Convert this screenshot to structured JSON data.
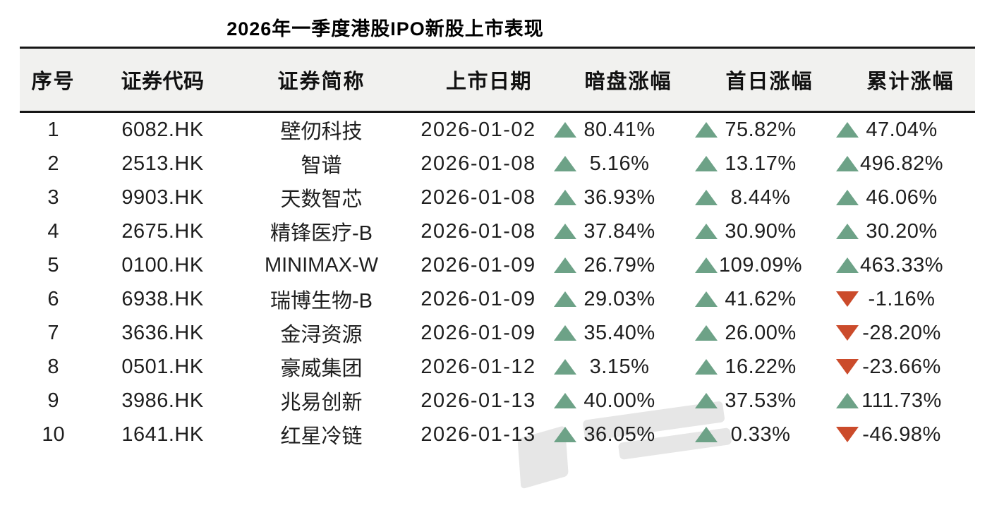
{
  "title": "2026年一季度港股IPO新股上市表现",
  "table": {
    "columns": [
      "序号",
      "证券代码",
      "证券简称",
      "上市日期",
      "暗盘涨幅",
      "首日涨幅",
      "累计涨幅"
    ],
    "rows": [
      {
        "no": "1",
        "code": "6082.HK",
        "name": "壁仞科技",
        "date": "2026-01-02",
        "changes": [
          {
            "value": "80.41%",
            "dir": "up"
          },
          {
            "value": "75.82%",
            "dir": "up"
          },
          {
            "value": "47.04%",
            "dir": "up"
          }
        ]
      },
      {
        "no": "2",
        "code": "2513.HK",
        "name": "智谱",
        "date": "2026-01-08",
        "changes": [
          {
            "value": "5.16%",
            "dir": "up"
          },
          {
            "value": "13.17%",
            "dir": "up"
          },
          {
            "value": "496.82%",
            "dir": "up"
          }
        ]
      },
      {
        "no": "3",
        "code": "9903.HK",
        "name": "天数智芯",
        "date": "2026-01-08",
        "changes": [
          {
            "value": "36.93%",
            "dir": "up"
          },
          {
            "value": "8.44%",
            "dir": "up"
          },
          {
            "value": "46.06%",
            "dir": "up"
          }
        ]
      },
      {
        "no": "4",
        "code": "2675.HK",
        "name": "精锋医疗-B",
        "date": "2026-01-08",
        "changes": [
          {
            "value": "37.84%",
            "dir": "up"
          },
          {
            "value": "30.90%",
            "dir": "up"
          },
          {
            "value": "30.20%",
            "dir": "up"
          }
        ]
      },
      {
        "no": "5",
        "code": "0100.HK",
        "name": "MINIMAX-W",
        "date": "2026-01-09",
        "changes": [
          {
            "value": "26.79%",
            "dir": "up"
          },
          {
            "value": "109.09%",
            "dir": "up"
          },
          {
            "value": "463.33%",
            "dir": "up"
          }
        ]
      },
      {
        "no": "6",
        "code": "6938.HK",
        "name": "瑞博生物-B",
        "date": "2026-01-09",
        "changes": [
          {
            "value": "29.03%",
            "dir": "up"
          },
          {
            "value": "41.62%",
            "dir": "up"
          },
          {
            "value": "-1.16%",
            "dir": "down"
          }
        ]
      },
      {
        "no": "7",
        "code": "3636.HK",
        "name": "金浔资源",
        "date": "2026-01-09",
        "changes": [
          {
            "value": "35.40%",
            "dir": "up"
          },
          {
            "value": "26.00%",
            "dir": "up"
          },
          {
            "value": "-28.20%",
            "dir": "down"
          }
        ]
      },
      {
        "no": "8",
        "code": "0501.HK",
        "name": "豪威集团",
        "date": "2026-01-12",
        "changes": [
          {
            "value": "3.15%",
            "dir": "up"
          },
          {
            "value": "16.22%",
            "dir": "up"
          },
          {
            "value": "-23.66%",
            "dir": "down"
          }
        ]
      },
      {
        "no": "9",
        "code": "3986.HK",
        "name": "兆易创新",
        "date": "2026-01-13",
        "changes": [
          {
            "value": "40.00%",
            "dir": "up"
          },
          {
            "value": "37.53%",
            "dir": "up"
          },
          {
            "value": "111.73%",
            "dir": "up"
          }
        ]
      },
      {
        "no": "10",
        "code": "1641.HK",
        "name": "红星冷链",
        "date": "2026-01-13",
        "changes": [
          {
            "value": "36.05%",
            "dir": "up"
          },
          {
            "value": "0.33%",
            "dir": "up"
          },
          {
            "value": "-46.98%",
            "dir": "down"
          }
        ]
      }
    ]
  },
  "colors": {
    "up": "#6da287",
    "down": "#cb4b2b",
    "header_bg": "#f1f1ef",
    "border": "#161616",
    "text": "#1e1e1e",
    "title": "#000000"
  },
  "chart_data": {
    "type": "table",
    "title": "2026年一季度港股IPO新股上市表现",
    "columns": [
      "序号",
      "证券代码",
      "证券简称",
      "上市日期",
      "暗盘涨幅",
      "首日涨幅",
      "累计涨幅"
    ],
    "rows": [
      [
        "1",
        "6082.HK",
        "壁仞科技",
        "2026-01-02",
        "80.41%",
        "75.82%",
        "47.04%"
      ],
      [
        "2",
        "2513.HK",
        "智谱",
        "2026-01-08",
        "5.16%",
        "13.17%",
        "496.82%"
      ],
      [
        "3",
        "9903.HK",
        "天数智芯",
        "2026-01-08",
        "36.93%",
        "8.44%",
        "46.06%"
      ],
      [
        "4",
        "2675.HK",
        "精锋医疗-B",
        "2026-01-08",
        "37.84%",
        "30.90%",
        "30.20%"
      ],
      [
        "5",
        "0100.HK",
        "MINIMAX-W",
        "2026-01-09",
        "26.79%",
        "109.09%",
        "463.33%"
      ],
      [
        "6",
        "6938.HK",
        "瑞博生物-B",
        "2026-01-09",
        "29.03%",
        "41.62%",
        "-1.16%"
      ],
      [
        "7",
        "3636.HK",
        "金浔资源",
        "2026-01-09",
        "35.40%",
        "26.00%",
        "-28.20%"
      ],
      [
        "8",
        "0501.HK",
        "豪威集团",
        "2026-01-12",
        "3.15%",
        "16.22%",
        "-23.66%"
      ],
      [
        "9",
        "3986.HK",
        "兆易创新",
        "2026-01-13",
        "40.00%",
        "37.53%",
        "111.73%"
      ],
      [
        "10",
        "1641.HK",
        "红星冷链",
        "2026-01-13",
        "36.05%",
        "0.33%",
        "-46.98%"
      ]
    ]
  }
}
